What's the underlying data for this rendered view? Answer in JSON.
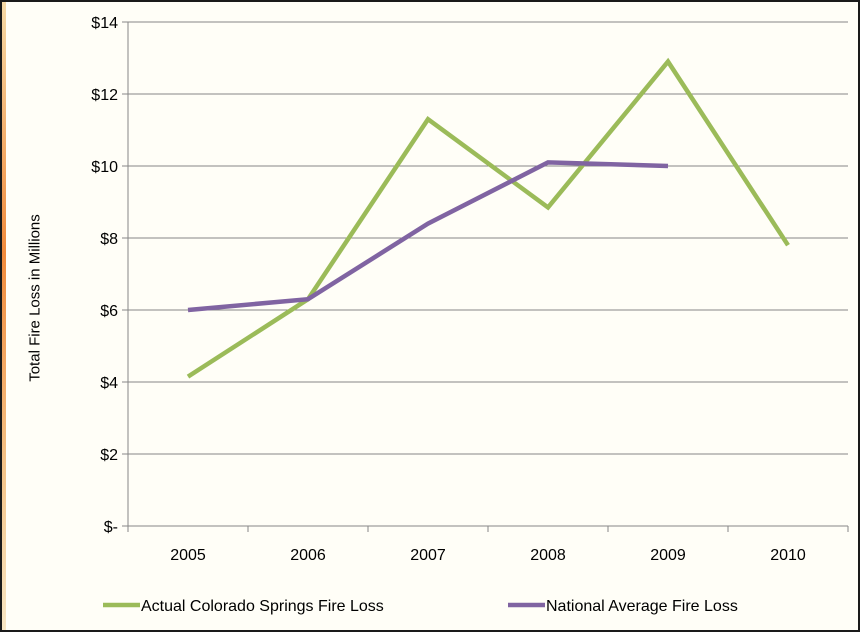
{
  "chart_data": {
    "type": "line",
    "title": "",
    "xlabel": "",
    "ylabel": "Total Fire Loss in Millions",
    "categories": [
      "2005",
      "2006",
      "2007",
      "2008",
      "2009",
      "2010"
    ],
    "ylim": [
      0,
      14
    ],
    "yticks": [
      0,
      2,
      4,
      6,
      8,
      10,
      12,
      14
    ],
    "ytick_labels": [
      "$-",
      "$2",
      "$4",
      "$6",
      "$8",
      "$10",
      "$12",
      "$14"
    ],
    "grid": true,
    "legend_position": "bottom",
    "series": [
      {
        "name": "Actual Colorado Springs Fire Loss",
        "color": "#9bbb59",
        "values": [
          4.15,
          6.3,
          11.3,
          8.85,
          12.9,
          7.8
        ]
      },
      {
        "name": "National Average Fire Loss",
        "color": "#8064a2",
        "values": [
          6.0,
          6.3,
          8.4,
          10.1,
          10.0,
          null
        ]
      }
    ]
  }
}
